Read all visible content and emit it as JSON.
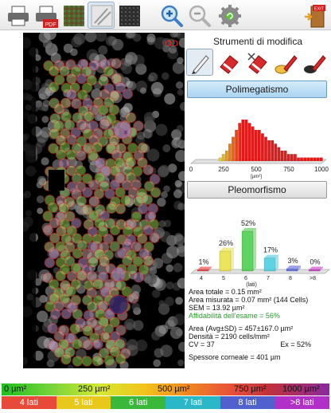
{
  "toolbar": {
    "buttons": [
      {
        "name": "print-icon"
      },
      {
        "name": "pdf-export-icon",
        "badge": "PDF"
      },
      {
        "name": "image-original-icon"
      },
      {
        "name": "image-outline-icon"
      },
      {
        "name": "image-dark-icon"
      },
      {
        "name": "zoom-in-icon"
      },
      {
        "name": "zoom-out-icon"
      },
      {
        "name": "settings-gear-icon"
      },
      {
        "name": "exit-door-icon",
        "badge": "EXIT"
      }
    ]
  },
  "image": {
    "eye_label": "OD"
  },
  "tools": {
    "title": "Strumenti di modifica",
    "items": [
      "pen-icon",
      "eraser-icon",
      "eraser-cross-icon",
      "add-cell-icon",
      "remove-cell-icon"
    ]
  },
  "polymegathism": {
    "button_label": "Polimegatismo",
    "chart_data": {
      "type": "bar",
      "title": "",
      "xlabel": "[µm²]",
      "xticks": [
        "0",
        "250",
        "500",
        "750",
        "1000"
      ],
      "xlim": [
        0,
        1000
      ],
      "bin_width": 25,
      "x_start": 200,
      "values": [
        1,
        2,
        3,
        5,
        7,
        9,
        11,
        12,
        12,
        11,
        10,
        9,
        9,
        8,
        7,
        6,
        6,
        5,
        4,
        3,
        3,
        2,
        2,
        2,
        1,
        1,
        1,
        1,
        1,
        1,
        1,
        1
      ]
    }
  },
  "pleomorphism": {
    "button_label": "Pleomorfismo",
    "chart_data": {
      "type": "bar",
      "xlabel": "(lati)",
      "categories": [
        "4",
        "5",
        "6",
        "7",
        "8",
        ">8"
      ],
      "values": [
        1,
        26,
        52,
        17,
        3,
        0
      ],
      "value_labels": [
        "1%",
        "26%",
        "52%",
        "17%",
        "3%",
        "0%"
      ],
      "colors": [
        "#ee3333",
        "#e8e040",
        "#44cc44",
        "#44ccdd",
        "#5566dd",
        "#cc33cc"
      ]
    }
  },
  "stats": {
    "area_total": "Area totale = 0.15 mm²",
    "area_measured": "Area misurata = 0.07 mm² (144 Cells)",
    "sem": "SEM = 13.92 µm²",
    "reliability": "Affidabilità dell'esame = 56%",
    "area_avg": "Area (Avg±SD) = 457±167.0 µm²",
    "density": "Densità = 2190 cells/mm²",
    "cv": "CV = 37",
    "ex": "Ex = 52%",
    "thickness": "Spessore corneale = 401 µm"
  },
  "legend": {
    "area_labels": [
      "0 µm²",
      "250 µm²",
      "500 µm²",
      "750 µm²",
      "1000 µm²"
    ],
    "side_labels": [
      "4 lati",
      "5 lati",
      "6 lati",
      "7 lati",
      "8 lati",
      ">8 lati"
    ],
    "side_colors": [
      "#e84a3a",
      "#e8c81a",
      "#3ab83a",
      "#2ab8c8",
      "#5060cc",
      "#b030c8"
    ]
  }
}
